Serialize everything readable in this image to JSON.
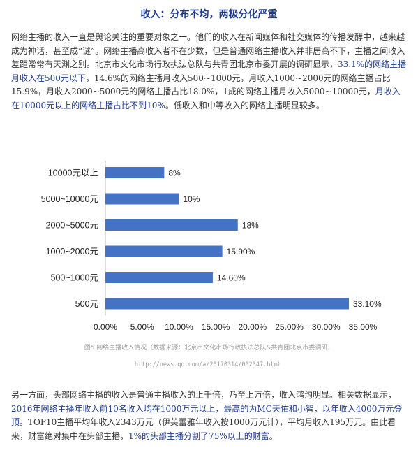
{
  "article": {
    "title": "收入：分布不均，两极分化严重",
    "intro_segments": [
      {
        "text": "网络主播的收入一直是舆论关注的重要对象之一。他们的收入在新闻媒体和社交媒体的传播发酵中，越来越成为神话，甚至成“谜”。网络主播高收入者不在少数，但是普通网络主播收入并非居高不下，主播之间收入差距常常有天渊之别。北京市文化市场行政执法总队与共青团北京市委开展的调研显示，",
        "style": "normal"
      },
      {
        "text": "33.1%的网络主播月收入在500元以下",
        "style": "blue"
      },
      {
        "text": "，14.6%的网络主播月收入500~1000元，月收入1000~2000元的网络主播占比15.9%，月收入2000~5000元的网络主播占比18.0%，1成的网络主播月收入5000~10000元，",
        "style": "normal"
      },
      {
        "text": "月收入在10000元以上的网络主播占比不到10%",
        "style": "blue"
      },
      {
        "text": "。低收入和中等收入的网络主播明显较多。",
        "style": "normal"
      }
    ],
    "outro_segments": [
      {
        "text": "另一方面，头部网络主播的收入是普通主播收入的上千倍，乃至上万倍，收入鸿沟明显。相关数据显示，",
        "style": "normal"
      },
      {
        "text": "2016年网络主播年收入前10名收入均在1000万元以上，最高的为MC天佑和小智，以年收入4000万元登顶",
        "style": "blue"
      },
      {
        "text": "。TOP10主播平均年收入2343万元（伊芙蕾雅年收入按1000万元计），平均月收入195万元。由此看来，财富绝对集中在头部主播，",
        "style": "normal"
      },
      {
        "text": "1%的头部主播分割了75%以上的财富",
        "style": "blue"
      },
      {
        "text": "。",
        "style": "normal"
      }
    ]
  },
  "figure": {
    "caption_line1": "图5 网络主播收入情况（数据来源：北京市文化市场行政执法总队&共青团北京市委调研，",
    "caption_line2": "http://news.qq.com/a/20170314/002347.htm）"
  },
  "chart_data": {
    "type": "bar",
    "orientation": "horizontal",
    "categories": [
      "10000元以上",
      "5000~10000元",
      "2000~5000元",
      "1000~2000元",
      "500~1000元",
      "500元"
    ],
    "values": [
      8,
      10,
      18,
      15.9,
      14.6,
      33.1
    ],
    "data_labels": [
      "8%",
      "10%",
      "18%",
      "15.90%",
      "14.60%",
      "33.10%"
    ],
    "x_ticks": [
      0,
      5,
      10,
      15,
      20,
      25,
      30,
      35
    ],
    "x_tick_labels": [
      "0.00%",
      "5.00%",
      "10.00%",
      "15.00%",
      "20.00%",
      "25.00%",
      "30.00%",
      "35.00%"
    ],
    "xlim": [
      0,
      35
    ],
    "title": "",
    "xlabel": "",
    "ylabel": "",
    "grid": false,
    "bar_color": "#4472c4"
  },
  "colors": {
    "title": "#1f3a8a",
    "highlight": "#1f3a8a",
    "body_text": "#333333",
    "caption": "#9a9a9a"
  }
}
